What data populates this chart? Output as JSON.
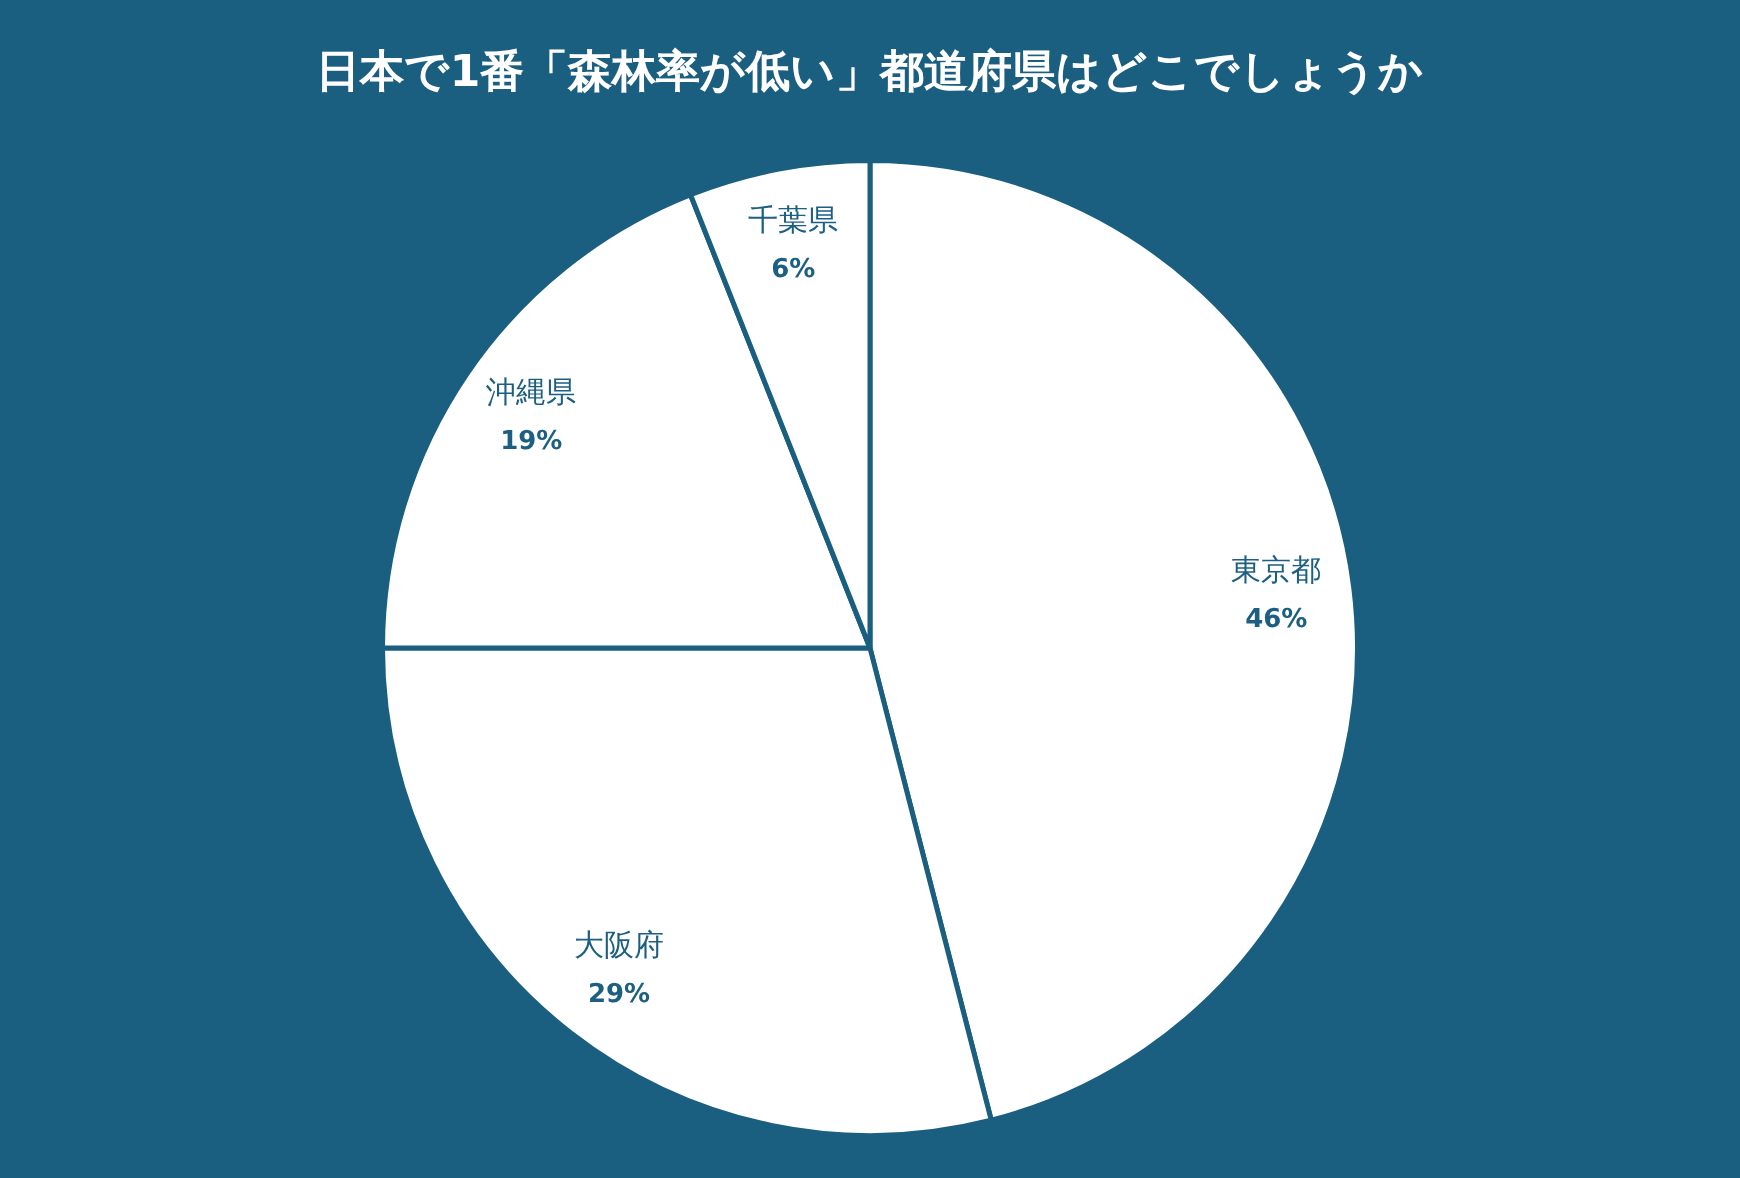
{
  "chart_data": {
    "type": "pie",
    "title": "日本で1番「森林率が低い」都道府県はどこでしょうか",
    "categories": [
      "東京都",
      "大阪府",
      "沖縄県",
      "千葉県"
    ],
    "values": [
      46,
      29,
      19,
      6
    ],
    "colors": [
      "#ffffff",
      "#ffffff",
      "#ffffff",
      "#ffffff"
    ],
    "value_labels": [
      "46%",
      "29%",
      "19%",
      "6%"
    ],
    "legend": false
  }
}
